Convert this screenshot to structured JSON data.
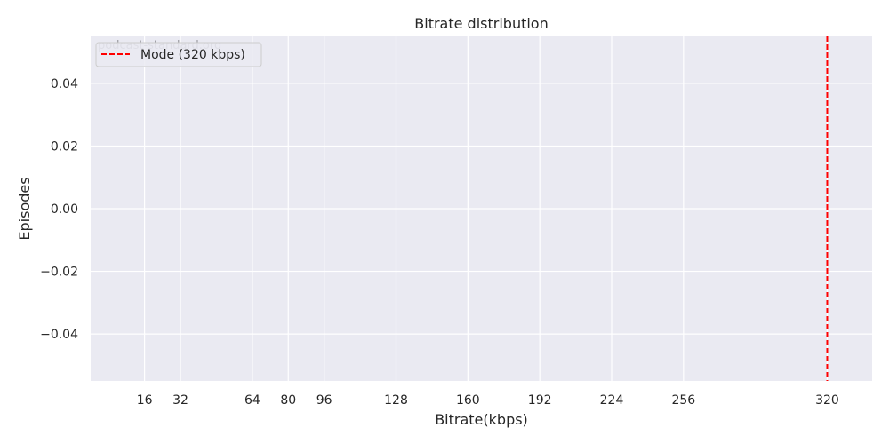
{
  "chart_data": {
    "type": "histogram",
    "title": "Bitrate distribution",
    "xlabel": "Bitrate(kbps)",
    "ylabel": "Episodes",
    "xlim": [
      -8,
      340
    ],
    "ylim": [
      -0.055,
      0.055
    ],
    "x_ticks": [
      16,
      32,
      64,
      80,
      96,
      128,
      160,
      192,
      224,
      256,
      320
    ],
    "x_tick_labels": [
      "16",
      "32",
      "64",
      "80",
      "96",
      "128",
      "160",
      "192",
      "224",
      "256",
      "320"
    ],
    "y_ticks": [
      -0.04,
      -0.02,
      0.0,
      0.02,
      0.04
    ],
    "y_tick_labels": [
      "−0.04",
      "−0.02",
      "0.00",
      "0.02",
      "0.04"
    ],
    "series": [],
    "reference_lines": [
      {
        "name": "Mode (320 kbps)",
        "x": 320,
        "color": "#ff0000",
        "style": "dashed"
      }
    ],
    "grid": true,
    "background": "#eaeaf2",
    "grid_color": "#ffffff",
    "legend": {
      "position": "top-left",
      "entries": [
        "Mode (320 kbps)"
      ]
    },
    "watermark": "podcast-standard.org"
  }
}
